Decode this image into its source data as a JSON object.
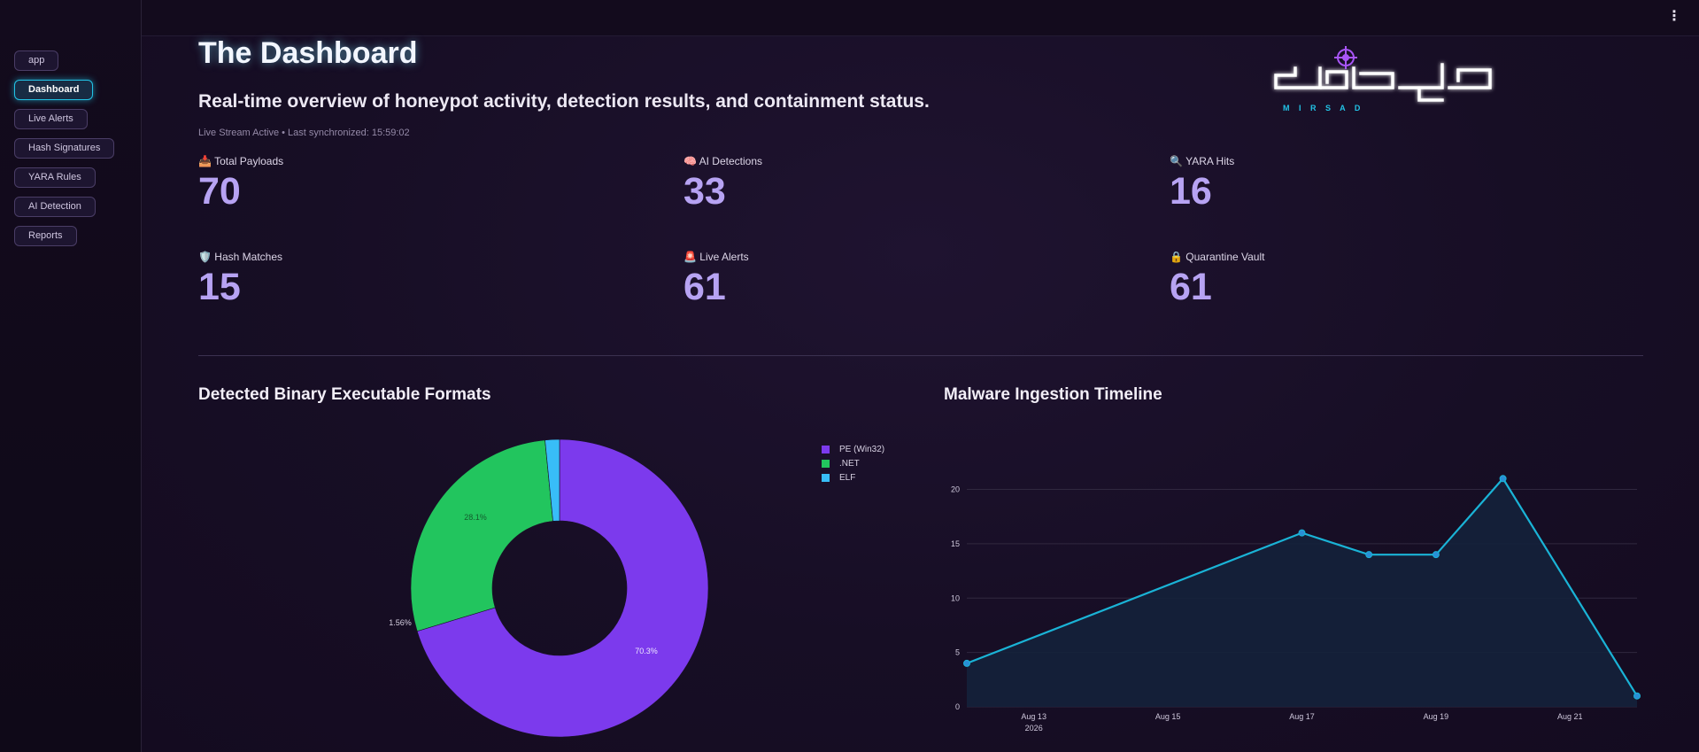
{
  "sidebar": {
    "items": [
      {
        "label": "app",
        "active": false
      },
      {
        "label": "Dashboard",
        "active": true
      },
      {
        "label": "Live Alerts",
        "active": false
      },
      {
        "label": "Hash Signatures",
        "active": false
      },
      {
        "label": "YARA Rules",
        "active": false
      },
      {
        "label": "AI Detection",
        "active": false
      },
      {
        "label": "Reports",
        "active": false
      }
    ]
  },
  "topbar": {
    "menu_icon": "kebab-menu-icon",
    "menu_glyph": "⋮"
  },
  "header": {
    "title": "The Dashboard",
    "subtitle": "Real-time overview of honeypot activity, detection results, and containment status.",
    "status": "Live Stream Active • Last synchronized: 15:59:02"
  },
  "logo": {
    "arabic": "مرصاد",
    "latin": "M I R S A D",
    "icon": "crosshair-icon"
  },
  "metrics": [
    {
      "icon": "inbox-tray-icon",
      "glyph": "📥",
      "label": "Total Payloads",
      "value": "70"
    },
    {
      "icon": "brain-icon",
      "glyph": "🧠",
      "label": "AI Detections",
      "value": "33"
    },
    {
      "icon": "magnifier-icon",
      "glyph": "🔍",
      "label": "YARA Hits",
      "value": "16"
    },
    {
      "icon": "shield-icon",
      "glyph": "🛡️",
      "label": "Hash Matches",
      "value": "15"
    },
    {
      "icon": "siren-icon",
      "glyph": "🚨",
      "label": "Live Alerts",
      "value": "61"
    },
    {
      "icon": "lock-icon",
      "glyph": "🔒",
      "label": "Quarantine Vault",
      "value": "61"
    }
  ],
  "colors": {
    "accent": "#b7a3f3",
    "pe": "#7c3aed",
    "net": "#22c55e",
    "elf": "#38bdf8",
    "line": "#1ab3d6"
  },
  "chart_data": [
    {
      "type": "pie",
      "title": "Detected Binary Executable Formats",
      "hole": true,
      "labels": [
        "PE (Win32)",
        ".NET",
        "ELF"
      ],
      "values": [
        70.3,
        28.1,
        1.56
      ],
      "slice_labels": [
        "70.3%",
        "28.1%",
        "1.56%"
      ],
      "colors": [
        "#7c3aed",
        "#22c55e",
        "#38bdf8"
      ],
      "legend": "top-right"
    },
    {
      "type": "area",
      "title": "Malware Ingestion Timeline",
      "x": [
        "2026-08-12",
        "2026-08-17",
        "2026-08-18",
        "2026-08-19",
        "2026-08-20",
        "2026-08-22"
      ],
      "y": [
        4,
        16,
        14,
        14,
        21,
        1
      ],
      "xticks": [
        "Aug 13",
        "Aug 15",
        "Aug 17",
        "Aug 19",
        "Aug 21"
      ],
      "xtick_year": "2026",
      "yticks": [
        "0",
        "5",
        "10",
        "15",
        "20"
      ],
      "ylim": [
        0,
        22
      ],
      "grid": true,
      "color": "#1ab3d6"
    }
  ]
}
